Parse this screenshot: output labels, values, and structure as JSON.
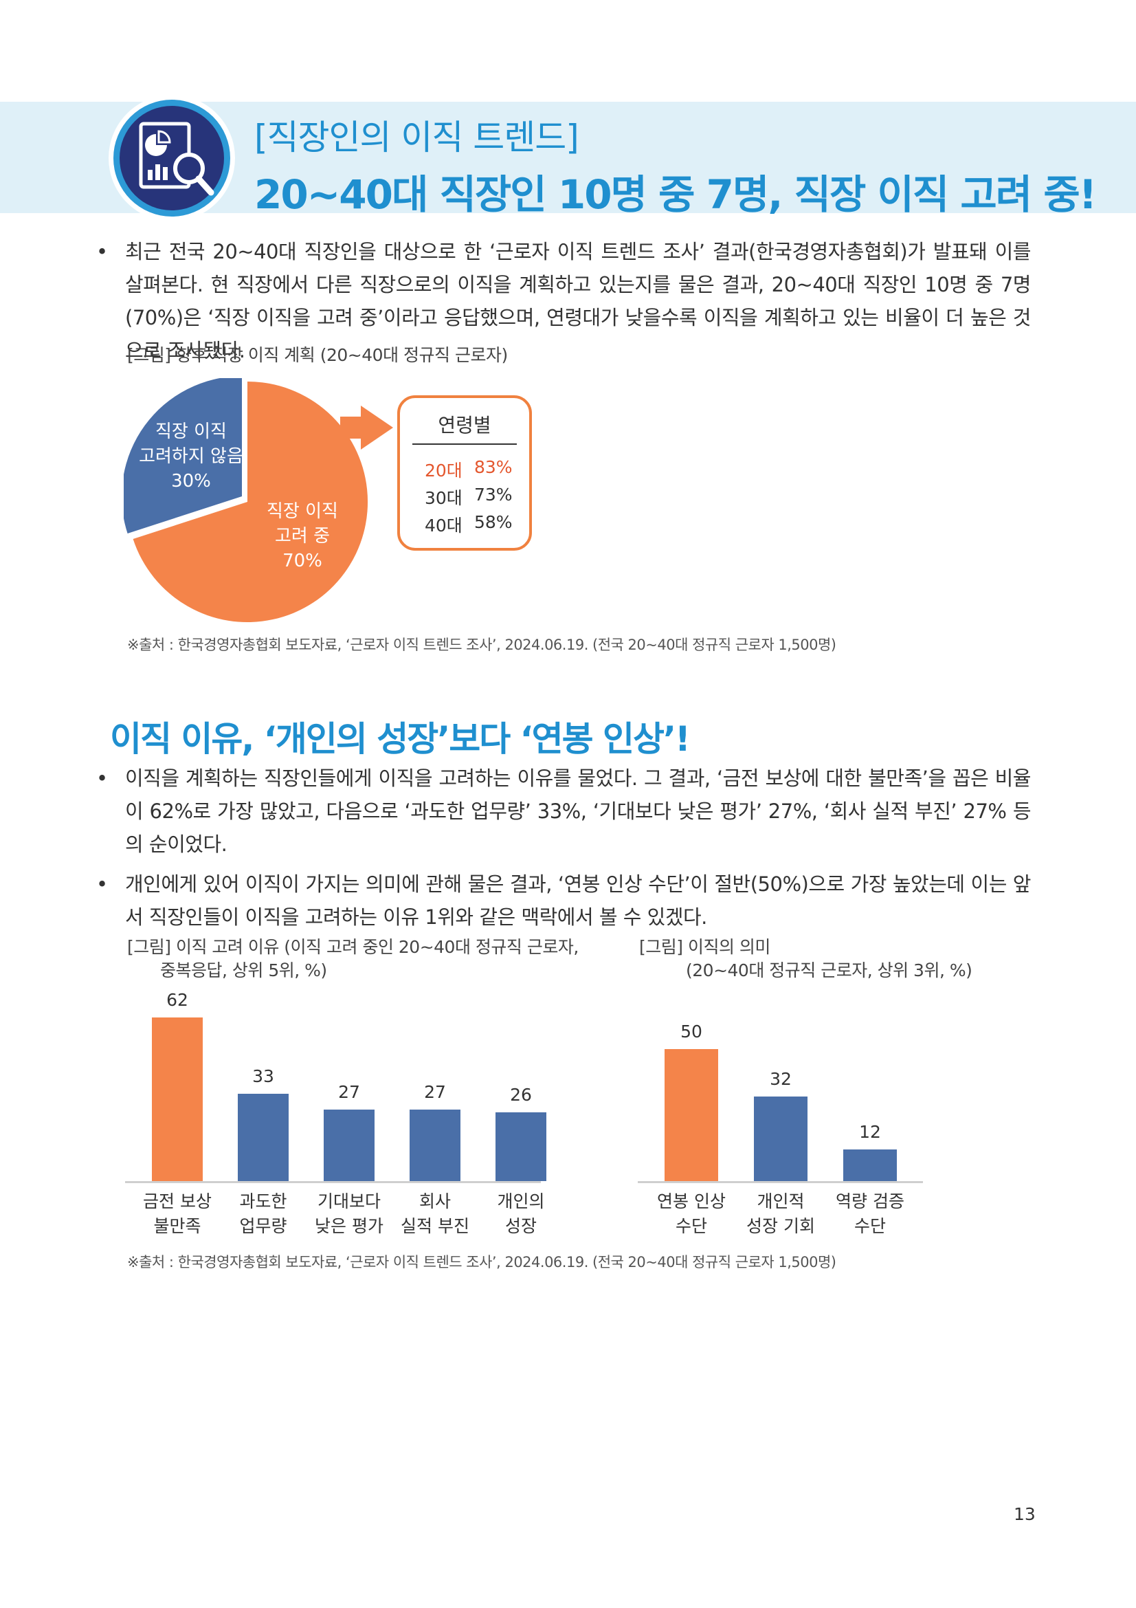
{
  "header": {
    "category": "[직장인의 이직 트렌드]",
    "title": "20~40대 직장인 10명 중 7명, 직장 이직 고려 중!",
    "icon": "report-magnifier-icon"
  },
  "section1": {
    "paragraph": "최근 전국 20~40대 직장인을 대상으로 한 ‘근로자 이직 트렌드 조사’ 결과(한국경영자총협회)가 발표돼 이를 살펴본다. 현 직장에서 다른 직장으로의 이직을 계획하고 있는지를 물은 결과, 20~40대 직장인 10명 중 7명(70%)은 ‘직장 이직을 고려 중’이라고 응답했으며, 연령대가 낮을수록 이직을 계획하고 있는 비율이 더 높은 것으로 조사됐다.",
    "figure_caption": "[그림] 향후 직장 이직 계획 (20~40대 정규직 근로자)",
    "source": "※출처 : 한국경영자총협회 보도자료, ‘근로자 이직 트렌드 조사’, 2024.06.19. (전국 20~40대 정규직 근로자 1,500명)"
  },
  "section2": {
    "title": "이직 이유, ‘개인의 성장’보다 ‘연봉 인상’!",
    "paragraphs": [
      "이직을 계획하는 직장인들에게 이직을 고려하는 이유를 물었다. 그 결과, ‘금전 보상에 대한 불만족’을 꼽은 비율이 62%로 가장 많았고, 다음으로 ‘과도한 업무량’ 33%, ‘기대보다 낮은 평가’ 27%, ‘회사 실적 부진’ 27% 등의 순이었다.",
      "개인에게 있어 이직이 가지는 의미에 관해 물은 결과, ‘연봉 인상 수단’이 절반(50%)으로 가장 높았는데 이는 앞서 직장인들이 이직을 고려하는 이유 1위와 같은 맥락에서 볼 수 있겠다."
    ],
    "caption_left_1": "[그림] 이직 고려 이유 (이직 고려 중인 20~40대 정규직 근로자,",
    "caption_left_2": "중복응답, 상위 5위, %)",
    "caption_right_1": "[그림] 이직의 의미",
    "caption_right_2": "(20~40대 정규직 근로자, 상위 3위, %)",
    "source": "※출처 : 한국경영자총협회 보도자료, ‘근로자 이직 트렌드 조사’, 2024.06.19. (전국 20~40대 정규직 근로자 1,500명)"
  },
  "colors": {
    "accent": "#1f8fcf",
    "orange": "#f4844a",
    "blue": "#4a6fa8",
    "band": "#dff0f8"
  },
  "chart_data": [
    {
      "type": "pie",
      "slices": [
        {
          "label": "직장 이직\n고려 중\n70%",
          "value": 70,
          "color": "#f4844a"
        },
        {
          "label": "직장 이직\n고려하지 않음\n30%",
          "value": 30,
          "color": "#4a6fa8"
        }
      ],
      "breakdown": {
        "title": "연령별",
        "rows": [
          {
            "age": "20대",
            "value": "83%",
            "highlight": true
          },
          {
            "age": "30대",
            "value": "73%",
            "highlight": false
          },
          {
            "age": "40대",
            "value": "58%",
            "highlight": false
          }
        ]
      }
    },
    {
      "type": "bar",
      "categories": [
        "금전 보상\n불만족",
        "과도한\n업무량",
        "기대보다\n낮은 평가",
        "회사\n실적 부진",
        "개인의\n성장"
      ],
      "values": [
        62,
        33,
        27,
        27,
        26
      ],
      "colors": [
        "#f4844a",
        "#4a6fa8",
        "#4a6fa8",
        "#4a6fa8",
        "#4a6fa8"
      ],
      "ylim": [
        0,
        62
      ]
    },
    {
      "type": "bar",
      "categories": [
        "연봉 인상\n수단",
        "개인적\n성장 기회",
        "역량 검증\n수단"
      ],
      "values": [
        50,
        32,
        12
      ],
      "colors": [
        "#f4844a",
        "#4a6fa8",
        "#4a6fa8"
      ],
      "ylim": [
        0,
        62
      ]
    }
  ],
  "page_number": "13"
}
